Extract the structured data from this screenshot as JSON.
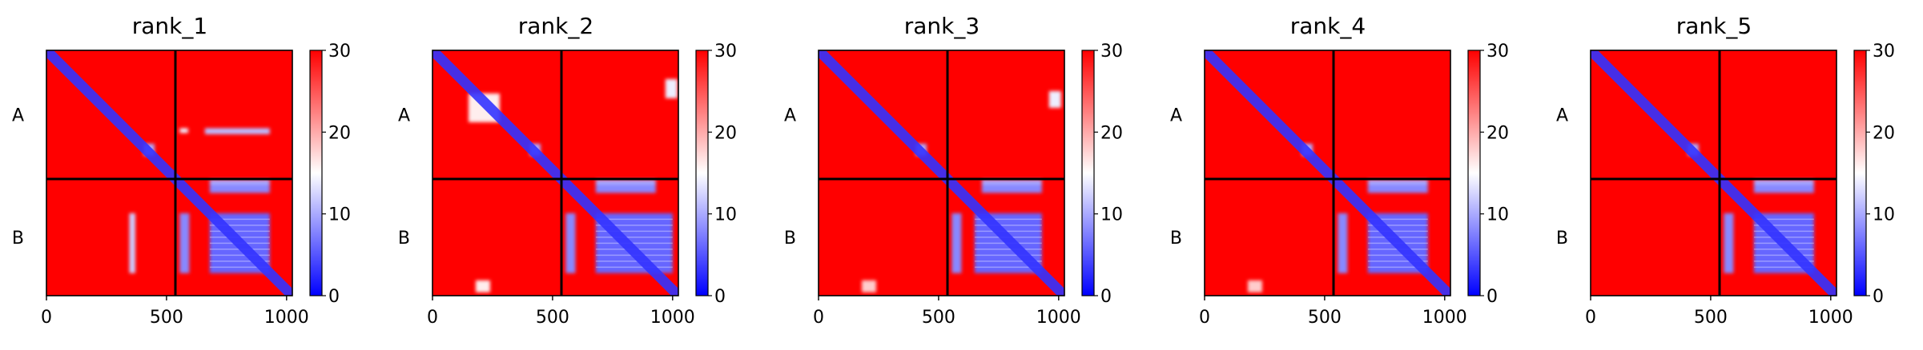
{
  "colormap": {
    "low": "#0000ff",
    "mid": "#ffffff",
    "high": "#ff0000"
  },
  "chart_data": [
    {
      "type": "heatmap",
      "title": "rank_1",
      "x_ticks": [
        "0",
        "500",
        "1000"
      ],
      "x_range": [
        0,
        1024
      ],
      "chains": [
        {
          "label": "A",
          "start": 0,
          "end": 537
        },
        {
          "label": "B",
          "start": 537,
          "end": 1024
        }
      ],
      "chain_boundary": 537,
      "colorbar": {
        "range": [
          0,
          30
        ],
        "ticks": [
          "0",
          "10",
          "20",
          "30"
        ]
      },
      "low_error_regions": [
        {
          "x": [
            680,
            930
          ],
          "y": [
            680,
            930
          ],
          "value": 6
        },
        {
          "x": [
            555,
            595
          ],
          "y": [
            680,
            930
          ],
          "value": 8
        },
        {
          "x": [
            680,
            930
          ],
          "y": [
            555,
            595
          ],
          "value": 8
        },
        {
          "x": [
            345,
            370
          ],
          "y": [
            680,
            930
          ],
          "value": 12
        },
        {
          "x": [
            680,
            930
          ],
          "y": [
            540,
            560
          ],
          "value": 10
        },
        {
          "x": [
            660,
            930
          ],
          "y": [
            325,
            350
          ],
          "value": 11
        },
        {
          "x": [
            555,
            590
          ],
          "y": [
            325,
            345
          ],
          "value": 14
        },
        {
          "x": [
            405,
            450
          ],
          "y": [
            390,
            440
          ],
          "value": 10
        }
      ]
    },
    {
      "type": "heatmap",
      "title": "rank_2",
      "x_ticks": [
        "0",
        "500",
        "1000"
      ],
      "x_range": [
        0,
        1024
      ],
      "chains": [
        {
          "label": "A",
          "start": 0,
          "end": 537
        },
        {
          "label": "B",
          "start": 537,
          "end": 1024
        }
      ],
      "chain_boundary": 537,
      "colorbar": {
        "range": [
          0,
          30
        ],
        "ticks": [
          "0",
          "10",
          "20",
          "30"
        ]
      },
      "low_error_regions": [
        {
          "x": [
            680,
            1000
          ],
          "y": [
            680,
            930
          ],
          "value": 6
        },
        {
          "x": [
            555,
            595
          ],
          "y": [
            680,
            930
          ],
          "value": 8
        },
        {
          "x": [
            680,
            930
          ],
          "y": [
            555,
            595
          ],
          "value": 8
        },
        {
          "x": [
            680,
            930
          ],
          "y": [
            540,
            560
          ],
          "value": 10
        },
        {
          "x": [
            150,
            280
          ],
          "y": [
            180,
            300
          ],
          "value": 16
        },
        {
          "x": [
            970,
            1020
          ],
          "y": [
            120,
            200
          ],
          "value": 14
        },
        {
          "x": [
            405,
            450
          ],
          "y": [
            390,
            440
          ],
          "value": 10
        },
        {
          "x": [
            180,
            240
          ],
          "y": [
            960,
            1010
          ],
          "value": 16
        }
      ]
    },
    {
      "type": "heatmap",
      "title": "rank_3",
      "x_ticks": [
        "0",
        "500",
        "1000"
      ],
      "x_range": [
        0,
        1024
      ],
      "chains": [
        {
          "label": "A",
          "start": 0,
          "end": 537
        },
        {
          "label": "B",
          "start": 537,
          "end": 1024
        }
      ],
      "chain_boundary": 537,
      "colorbar": {
        "range": [
          0,
          30
        ],
        "ticks": [
          "0",
          "10",
          "20",
          "30"
        ]
      },
      "low_error_regions": [
        {
          "x": [
            650,
            930
          ],
          "y": [
            680,
            930
          ],
          "value": 6
        },
        {
          "x": [
            555,
            595
          ],
          "y": [
            680,
            930
          ],
          "value": 8
        },
        {
          "x": [
            680,
            930
          ],
          "y": [
            555,
            595
          ],
          "value": 8
        },
        {
          "x": [
            680,
            930
          ],
          "y": [
            540,
            560
          ],
          "value": 10
        },
        {
          "x": [
            960,
            1010
          ],
          "y": [
            170,
            240
          ],
          "value": 14
        },
        {
          "x": [
            405,
            450
          ],
          "y": [
            390,
            440
          ],
          "value": 10
        },
        {
          "x": [
            180,
            240
          ],
          "y": [
            960,
            1010
          ],
          "value": 18
        }
      ]
    },
    {
      "type": "heatmap",
      "title": "rank_4",
      "x_ticks": [
        "0",
        "500",
        "1000"
      ],
      "x_range": [
        0,
        1024
      ],
      "chains": [
        {
          "label": "A",
          "start": 0,
          "end": 537
        },
        {
          "label": "B",
          "start": 537,
          "end": 1024
        }
      ],
      "chain_boundary": 537,
      "colorbar": {
        "range": [
          0,
          30
        ],
        "ticks": [
          "0",
          "10",
          "20",
          "30"
        ]
      },
      "low_error_regions": [
        {
          "x": [
            680,
            930
          ],
          "y": [
            680,
            930
          ],
          "value": 6
        },
        {
          "x": [
            555,
            595
          ],
          "y": [
            680,
            930
          ],
          "value": 8
        },
        {
          "x": [
            680,
            930
          ],
          "y": [
            555,
            595
          ],
          "value": 8
        },
        {
          "x": [
            680,
            930
          ],
          "y": [
            540,
            560
          ],
          "value": 10
        },
        {
          "x": [
            405,
            450
          ],
          "y": [
            390,
            440
          ],
          "value": 10
        },
        {
          "x": [
            180,
            240
          ],
          "y": [
            960,
            1010
          ],
          "value": 18
        }
      ]
    },
    {
      "type": "heatmap",
      "title": "rank_5",
      "x_ticks": [
        "0",
        "500",
        "1000"
      ],
      "x_range": [
        0,
        1024
      ],
      "chains": [
        {
          "label": "A",
          "start": 0,
          "end": 537
        },
        {
          "label": "B",
          "start": 537,
          "end": 1024
        }
      ],
      "chain_boundary": 537,
      "colorbar": {
        "range": [
          0,
          30
        ],
        "ticks": [
          "0",
          "10",
          "20",
          "30"
        ]
      },
      "low_error_regions": [
        {
          "x": [
            680,
            930
          ],
          "y": [
            680,
            930
          ],
          "value": 6
        },
        {
          "x": [
            555,
            595
          ],
          "y": [
            680,
            930
          ],
          "value": 8
        },
        {
          "x": [
            680,
            930
          ],
          "y": [
            555,
            595
          ],
          "value": 8
        },
        {
          "x": [
            680,
            930
          ],
          "y": [
            540,
            560
          ],
          "value": 10
        },
        {
          "x": [
            405,
            450
          ],
          "y": [
            390,
            440
          ],
          "value": 10
        }
      ]
    }
  ]
}
